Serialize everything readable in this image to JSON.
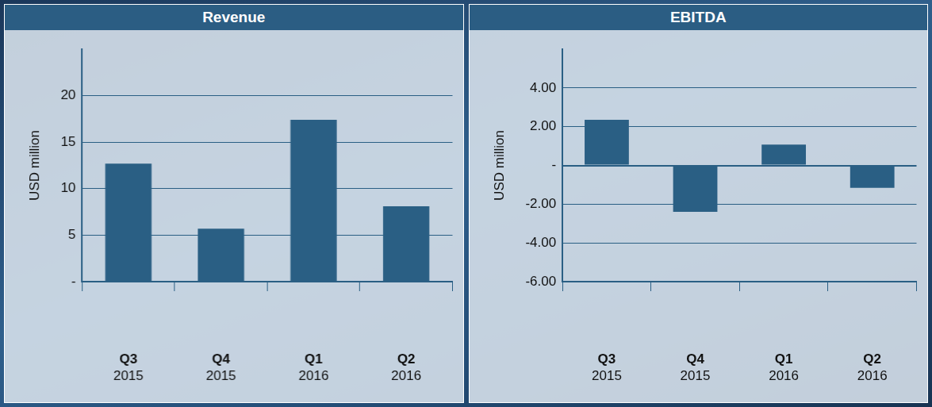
{
  "chart_data": [
    {
      "type": "bar",
      "title": "Revenue",
      "y_label": "USD million",
      "categories": [
        "Q3 2015",
        "Q4 2015",
        "Q1 2016",
        "Q2 2016"
      ],
      "values": [
        12.7,
        5.7,
        17.4,
        8.1
      ],
      "color": "#2a5f84",
      "ylim": [
        0,
        25
      ],
      "yticks": [
        {
          "value": 0,
          "label": "-"
        },
        5,
        10,
        15,
        20
      ],
      "grid": true
    },
    {
      "type": "bar",
      "title": "EBITDA",
      "y_label": "USD million",
      "categories": [
        "Q3 2015",
        "Q4 2015",
        "Q1 2016",
        "Q2 2016"
      ],
      "values": [
        2.35,
        -2.4,
        1.08,
        -1.16
      ],
      "color": "#2a5f84",
      "ylim": [
        -6,
        6
      ],
      "yticks": [
        {
          "value": -6,
          "label": "-6.00"
        },
        {
          "value": -4,
          "label": "-4.00"
        },
        {
          "value": -2,
          "label": "-2.00"
        },
        {
          "value": 0,
          "label": "-"
        },
        {
          "value": 2,
          "label": "2.00"
        },
        {
          "value": 4,
          "label": "4.00"
        }
      ],
      "grid": true
    }
  ]
}
